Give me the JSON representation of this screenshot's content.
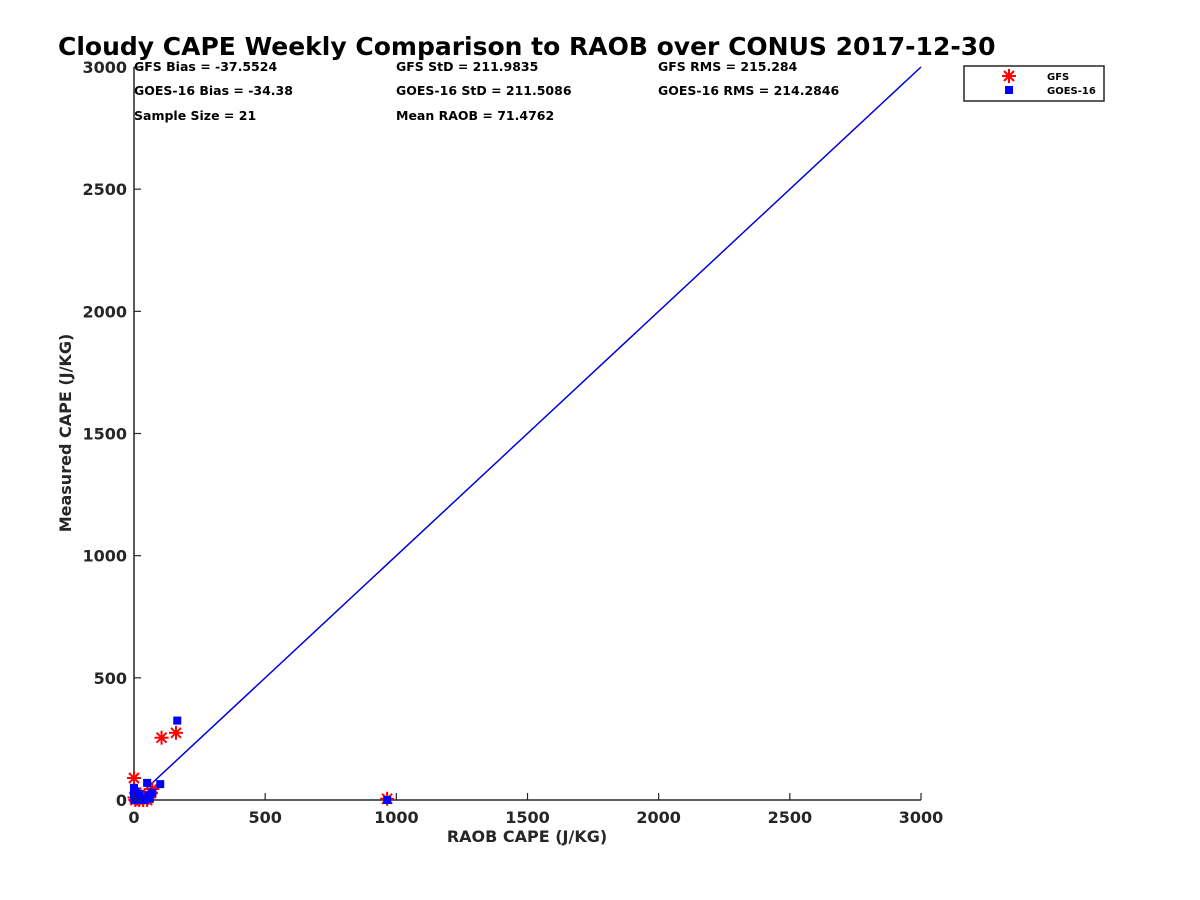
{
  "chart_data": {
    "type": "scatter",
    "title": "Cloudy CAPE Weekly Comparison to RAOB over CONUS 2017-12-30",
    "xlabel": "RAOB CAPE (J/KG)",
    "ylabel": "Measured CAPE (J/KG)",
    "xlim": [
      0,
      3000
    ],
    "ylim": [
      0,
      3000
    ],
    "xticks": [
      "0",
      "500",
      "1000",
      "1500",
      "2000",
      "2500",
      "3000"
    ],
    "yticks": [
      "0",
      "500",
      "1000",
      "1500",
      "2000",
      "2500",
      "3000"
    ],
    "grid": false,
    "legend_position": "top-right, outside plot",
    "stats": [
      [
        "GFS Bias = -37.5524",
        "GFS StD = 211.9835",
        "GFS RMS = 215.284"
      ],
      [
        "GOES-16 Bias = -34.38",
        "GOES-16 StD = 211.5086",
        "GOES-16 RMS = 214.2846"
      ],
      [
        "Sample Size = 21",
        "Mean RAOB = 71.4762",
        ""
      ]
    ],
    "reference_line": {
      "x": [
        0,
        3000
      ],
      "y": [
        0,
        3000
      ],
      "color": "#0000dd"
    },
    "series": [
      {
        "name": "GFS",
        "marker": "asterisk",
        "color": "#ff0000",
        "points": [
          [
            0,
            90
          ],
          [
            2,
            10
          ],
          [
            5,
            0
          ],
          [
            8,
            30
          ],
          [
            12,
            5
          ],
          [
            20,
            0
          ],
          [
            25,
            15
          ],
          [
            35,
            0
          ],
          [
            40,
            20
          ],
          [
            50,
            0
          ],
          [
            55,
            10
          ],
          [
            65,
            30
          ],
          [
            70,
            45
          ],
          [
            105,
            255
          ],
          [
            160,
            275
          ],
          [
            965,
            5
          ]
        ]
      },
      {
        "name": "GOES-16",
        "marker": "square",
        "color": "#0000ff",
        "points": [
          [
            0,
            50
          ],
          [
            0,
            20
          ],
          [
            2,
            0
          ],
          [
            5,
            35
          ],
          [
            10,
            10
          ],
          [
            15,
            0
          ],
          [
            20,
            25
          ],
          [
            30,
            5
          ],
          [
            40,
            0
          ],
          [
            50,
            70
          ],
          [
            55,
            20
          ],
          [
            60,
            5
          ],
          [
            70,
            30
          ],
          [
            100,
            65
          ],
          [
            165,
            325
          ],
          [
            965,
            0
          ]
        ]
      }
    ]
  }
}
